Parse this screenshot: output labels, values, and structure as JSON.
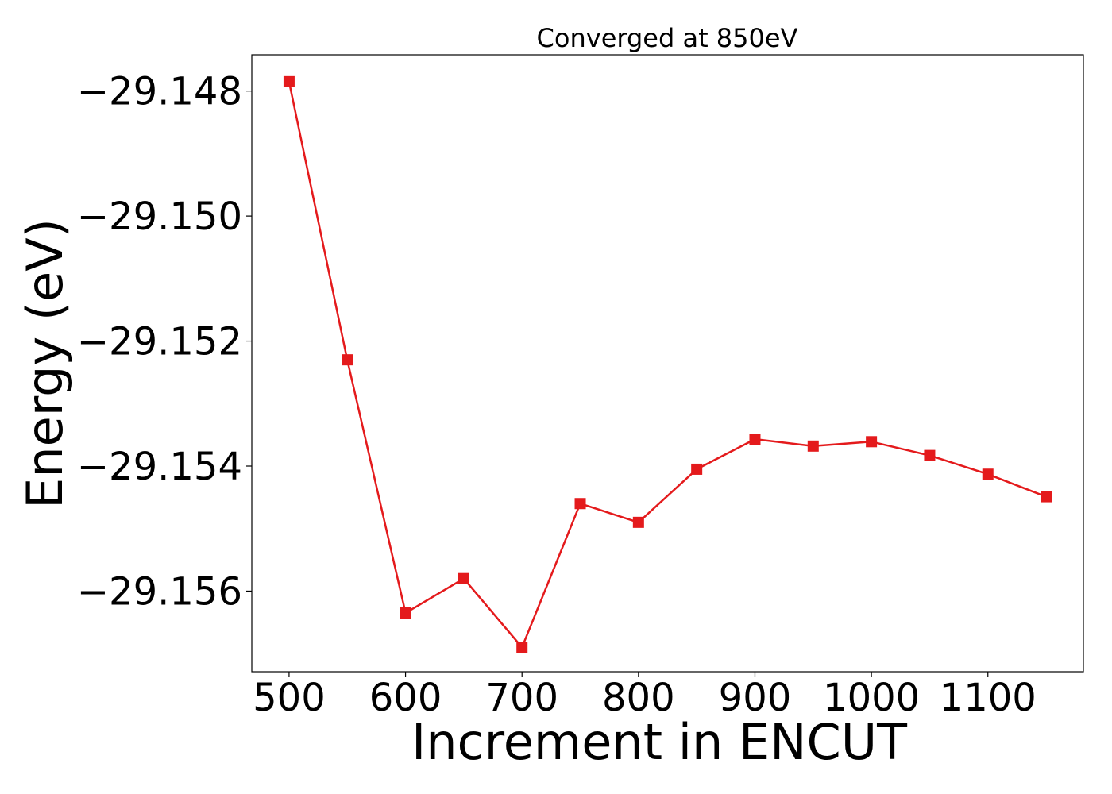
{
  "chart_data": {
    "type": "line",
    "title": "Converged at 850eV",
    "xlabel": "Increment in ENCUT",
    "ylabel": "Energy (eV)",
    "x": [
      500,
      550,
      600,
      650,
      700,
      750,
      800,
      850,
      900,
      950,
      1000,
      1050,
      1100,
      1150
    ],
    "series": [
      {
        "values": [
          -29.14785,
          -29.1523,
          -29.15635,
          -29.1558,
          -29.1569,
          -29.1546,
          -29.1549,
          -29.15405,
          -29.15357,
          -29.15368,
          -29.15361,
          -29.15383,
          -29.15413,
          -29.15449
        ],
        "color": "#e41a1c",
        "marker": "square"
      }
    ],
    "xlim": [
      468,
      1182
    ],
    "ylim": [
      -29.15729,
      -29.14742
    ],
    "xticks": [
      500,
      600,
      700,
      800,
      900,
      1000,
      1100
    ],
    "xtick_labels": [
      "500",
      "600",
      "700",
      "800",
      "900",
      "1000",
      "1100"
    ],
    "yticks": [
      -29.148,
      -29.15,
      -29.152,
      -29.154,
      -29.156
    ],
    "ytick_labels": [
      "−29.148",
      "−29.150",
      "−29.152",
      "−29.154",
      "−29.156"
    ],
    "grid": false,
    "legend": "none"
  }
}
